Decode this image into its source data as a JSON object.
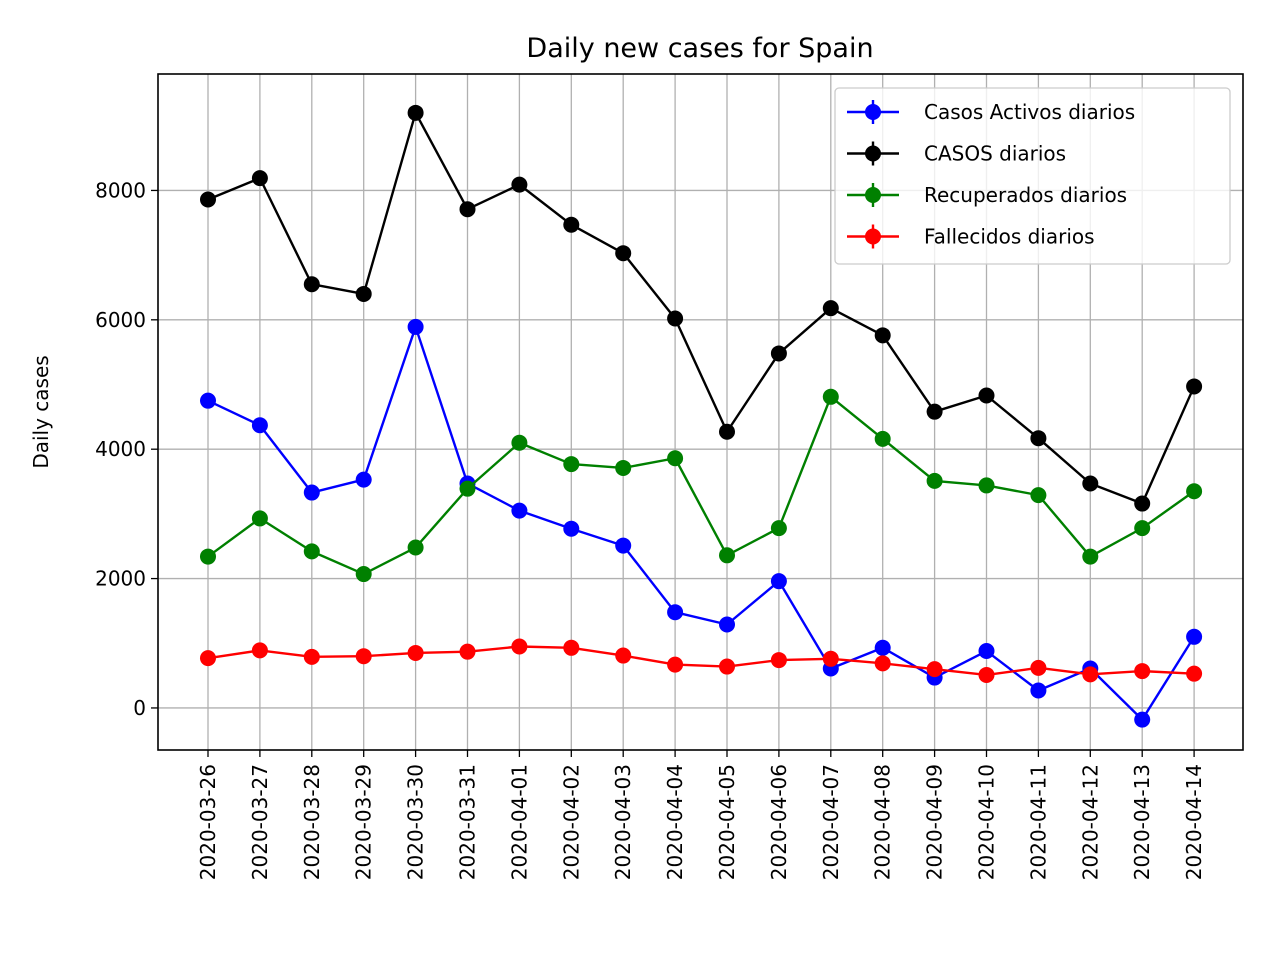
{
  "chart_data": {
    "type": "line",
    "title": "Daily new cases for Spain",
    "xlabel": "",
    "ylabel": "Daily cases",
    "ylim": [
      -650,
      9800
    ],
    "yticks": [
      0,
      2000,
      4000,
      6000,
      8000
    ],
    "grid": true,
    "legend_position": "top-right",
    "x": [
      "2020-03-26",
      "2020-03-27",
      "2020-03-28",
      "2020-03-29",
      "2020-03-30",
      "2020-03-31",
      "2020-04-01",
      "2020-04-02",
      "2020-04-03",
      "2020-04-04",
      "2020-04-05",
      "2020-04-06",
      "2020-04-07",
      "2020-04-08",
      "2020-04-09",
      "2020-04-10",
      "2020-04-11",
      "2020-04-12",
      "2020-04-13",
      "2020-04-14"
    ],
    "series": [
      {
        "name": "Casos Activos diarios",
        "color": "#0000ff",
        "values": [
          4750,
          4370,
          3330,
          3530,
          5890,
          3470,
          3050,
          2770,
          2510,
          1480,
          1290,
          1960,
          610,
          930,
          470,
          880,
          270,
          610,
          -180,
          1100
        ]
      },
      {
        "name": "CASOS diarios",
        "color": "#000000",
        "values": [
          7860,
          8190,
          6550,
          6400,
          9200,
          7710,
          8090,
          7470,
          7030,
          6020,
          4270,
          5480,
          6180,
          5760,
          4580,
          4830,
          4170,
          3470,
          3160,
          4970
        ]
      },
      {
        "name": "Recuperados diarios",
        "color": "#008000",
        "values": [
          2340,
          2930,
          2420,
          2070,
          2480,
          3390,
          4100,
          3770,
          3710,
          3860,
          2360,
          2780,
          4810,
          4160,
          3510,
          3440,
          3290,
          2340,
          2780,
          3350
        ]
      },
      {
        "name": "Fallecidos diarios",
        "color": "#ff0000",
        "values": [
          770,
          890,
          790,
          800,
          850,
          870,
          950,
          930,
          810,
          670,
          640,
          740,
          760,
          690,
          600,
          510,
          620,
          520,
          570,
          530
        ]
      }
    ]
  }
}
